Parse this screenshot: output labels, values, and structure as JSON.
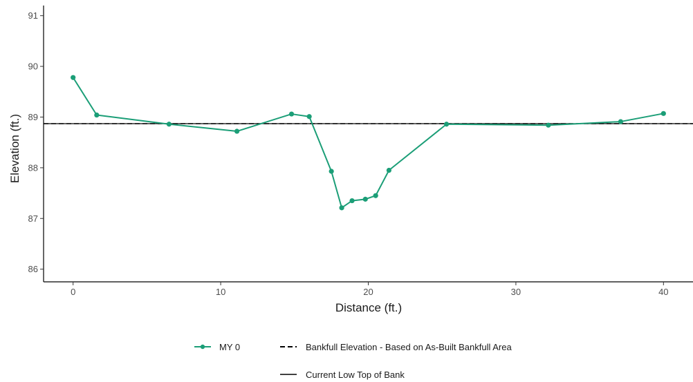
{
  "chart_data": {
    "type": "line",
    "xlabel": "Distance (ft.)",
    "ylabel": "Elevation (ft.)",
    "xlim": [
      -2,
      42
    ],
    "ylim": [
      85.75,
      91.2
    ],
    "x_ticks": [
      0,
      10,
      20,
      30,
      40
    ],
    "y_ticks": [
      86,
      87,
      88,
      89,
      90,
      91
    ],
    "grid": false,
    "legend_position": "bottom",
    "series": [
      {
        "name": "MY 0",
        "color": "#1b9e77",
        "marker": "circle",
        "x": [
          0,
          1.6,
          6.5,
          11.1,
          14.8,
          16,
          17.5,
          18.2,
          18.9,
          19.8,
          20.5,
          21.4,
          25.3,
          32.2,
          37.1,
          40
        ],
        "y": [
          89.78,
          89.04,
          88.86,
          88.72,
          89.06,
          89.01,
          87.93,
          87.21,
          87.35,
          87.38,
          87.45,
          87.95,
          88.86,
          88.84,
          88.91,
          89.07
        ]
      }
    ],
    "reference_lines": [
      {
        "name": "Bankfull Elevation - Based on As-Built Bankfull Area",
        "style": "dashed",
        "y": 88.87,
        "color": "#000000"
      },
      {
        "name": "Current Low Top of Bank",
        "style": "solid",
        "y": 88.87,
        "color": "#000000"
      }
    ]
  }
}
